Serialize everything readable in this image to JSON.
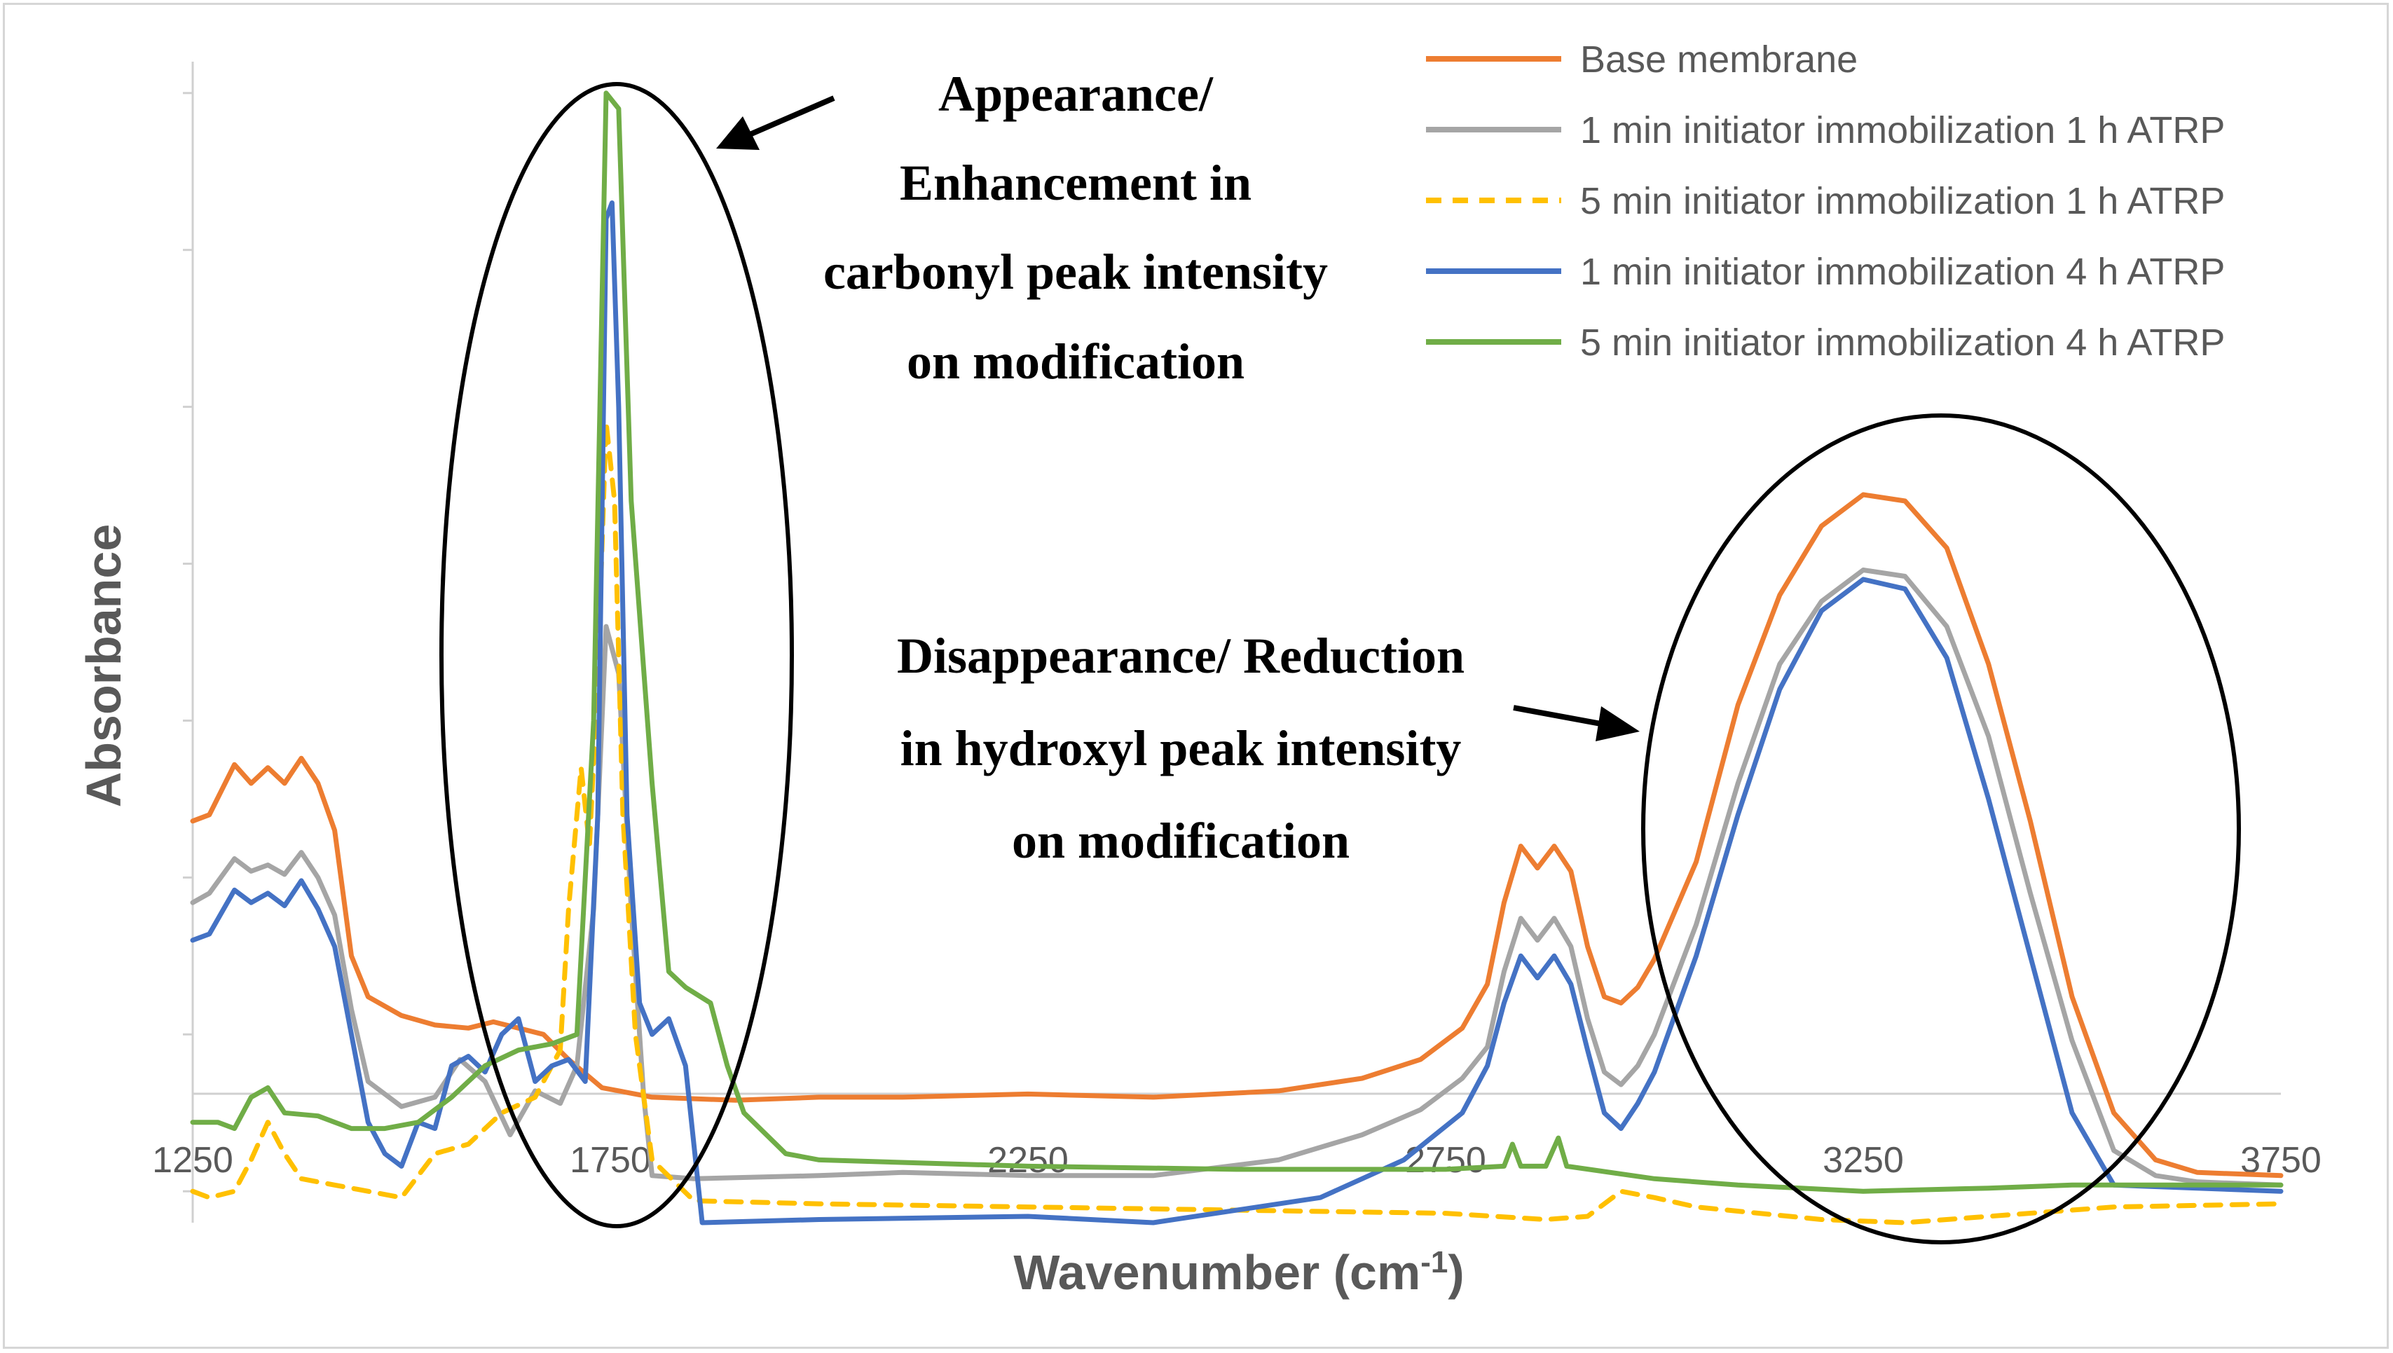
{
  "chart_data": {
    "type": "line",
    "title": "",
    "xlabel": "Wavenumber (cm",
    "xlabel_sup": "-1",
    "xlabel_close": ")",
    "ylabel": "Absorbance",
    "xlim": [
      1250,
      3750
    ],
    "ylim": [
      -0.1,
      3.6
    ],
    "xticks": [
      1250,
      1750,
      2250,
      2750,
      3250,
      3750
    ],
    "series": [
      {
        "name": "Base membrane",
        "color": "#ED7D31",
        "dash": "solid",
        "points": [
          [
            1250,
            1.18
          ],
          [
            1270,
            1.2
          ],
          [
            1300,
            1.36
          ],
          [
            1320,
            1.3
          ],
          [
            1340,
            1.35
          ],
          [
            1360,
            1.3
          ],
          [
            1380,
            1.38
          ],
          [
            1400,
            1.3
          ],
          [
            1420,
            1.15
          ],
          [
            1440,
            0.75
          ],
          [
            1460,
            0.62
          ],
          [
            1500,
            0.56
          ],
          [
            1540,
            0.53
          ],
          [
            1580,
            0.52
          ],
          [
            1610,
            0.54
          ],
          [
            1640,
            0.52
          ],
          [
            1670,
            0.5
          ],
          [
            1700,
            0.42
          ],
          [
            1740,
            0.33
          ],
          [
            1800,
            0.3
          ],
          [
            1900,
            0.29
          ],
          [
            2000,
            0.3
          ],
          [
            2100,
            0.3
          ],
          [
            2250,
            0.31
          ],
          [
            2400,
            0.3
          ],
          [
            2550,
            0.32
          ],
          [
            2650,
            0.36
          ],
          [
            2720,
            0.42
          ],
          [
            2770,
            0.52
          ],
          [
            2800,
            0.66
          ],
          [
            2820,
            0.92
          ],
          [
            2840,
            1.1
          ],
          [
            2860,
            1.03
          ],
          [
            2880,
            1.1
          ],
          [
            2900,
            1.02
          ],
          [
            2920,
            0.78
          ],
          [
            2940,
            0.62
          ],
          [
            2960,
            0.6
          ],
          [
            2980,
            0.65
          ],
          [
            3000,
            0.74
          ],
          [
            3050,
            1.05
          ],
          [
            3100,
            1.55
          ],
          [
            3150,
            1.9
          ],
          [
            3200,
            2.12
          ],
          [
            3250,
            2.22
          ],
          [
            3300,
            2.2
          ],
          [
            3350,
            2.05
          ],
          [
            3400,
            1.68
          ],
          [
            3450,
            1.18
          ],
          [
            3500,
            0.62
          ],
          [
            3550,
            0.25
          ],
          [
            3600,
            0.1
          ],
          [
            3650,
            0.06
          ],
          [
            3750,
            0.05
          ]
        ]
      },
      {
        "name": "1 min initiator immobilization 1 h ATRP",
        "color": "#A5A5A5",
        "dash": "solid",
        "points": [
          [
            1250,
            0.92
          ],
          [
            1270,
            0.95
          ],
          [
            1300,
            1.06
          ],
          [
            1320,
            1.02
          ],
          [
            1340,
            1.04
          ],
          [
            1360,
            1.01
          ],
          [
            1380,
            1.08
          ],
          [
            1400,
            1.0
          ],
          [
            1420,
            0.88
          ],
          [
            1440,
            0.58
          ],
          [
            1460,
            0.35
          ],
          [
            1500,
            0.27
          ],
          [
            1540,
            0.3
          ],
          [
            1570,
            0.42
          ],
          [
            1600,
            0.35
          ],
          [
            1630,
            0.18
          ],
          [
            1660,
            0.32
          ],
          [
            1690,
            0.28
          ],
          [
            1710,
            0.4
          ],
          [
            1730,
            0.9
          ],
          [
            1745,
            1.8
          ],
          [
            1760,
            1.65
          ],
          [
            1775,
            0.9
          ],
          [
            1790,
            0.3
          ],
          [
            1800,
            0.05
          ],
          [
            1850,
            0.04
          ],
          [
            2000,
            0.05
          ],
          [
            2100,
            0.06
          ],
          [
            2250,
            0.05
          ],
          [
            2400,
            0.05
          ],
          [
            2550,
            0.1
          ],
          [
            2650,
            0.18
          ],
          [
            2720,
            0.26
          ],
          [
            2770,
            0.36
          ],
          [
            2800,
            0.46
          ],
          [
            2820,
            0.7
          ],
          [
            2840,
            0.87
          ],
          [
            2860,
            0.8
          ],
          [
            2880,
            0.87
          ],
          [
            2900,
            0.78
          ],
          [
            2920,
            0.55
          ],
          [
            2940,
            0.38
          ],
          [
            2960,
            0.34
          ],
          [
            2980,
            0.4
          ],
          [
            3000,
            0.5
          ],
          [
            3050,
            0.85
          ],
          [
            3100,
            1.3
          ],
          [
            3150,
            1.68
          ],
          [
            3200,
            1.88
          ],
          [
            3250,
            1.98
          ],
          [
            3300,
            1.96
          ],
          [
            3350,
            1.8
          ],
          [
            3400,
            1.45
          ],
          [
            3450,
            0.95
          ],
          [
            3500,
            0.48
          ],
          [
            3550,
            0.13
          ],
          [
            3600,
            0.05
          ],
          [
            3650,
            0.03
          ],
          [
            3750,
            0.02
          ]
        ]
      },
      {
        "name": "5 min initiator immobilization 1 h ATRP",
        "color": "#FFC000",
        "dash": "dashed",
        "points": [
          [
            1250,
            0.0
          ],
          [
            1270,
            -0.02
          ],
          [
            1300,
            0.0
          ],
          [
            1320,
            0.1
          ],
          [
            1340,
            0.22
          ],
          [
            1360,
            0.12
          ],
          [
            1380,
            0.04
          ],
          [
            1420,
            0.02
          ],
          [
            1460,
            0.0
          ],
          [
            1500,
            -0.02
          ],
          [
            1540,
            0.12
          ],
          [
            1580,
            0.15
          ],
          [
            1620,
            0.25
          ],
          [
            1660,
            0.3
          ],
          [
            1690,
            0.45
          ],
          [
            1700,
            0.9
          ],
          [
            1715,
            1.35
          ],
          [
            1725,
            1.1
          ],
          [
            1735,
            1.65
          ],
          [
            1745,
            2.45
          ],
          [
            1755,
            2.2
          ],
          [
            1765,
            1.2
          ],
          [
            1780,
            0.5
          ],
          [
            1800,
            0.1
          ],
          [
            1850,
            -0.03
          ],
          [
            2000,
            -0.04
          ],
          [
            2250,
            -0.05
          ],
          [
            2500,
            -0.06
          ],
          [
            2750,
            -0.07
          ],
          [
            2870,
            -0.09
          ],
          [
            2920,
            -0.08
          ],
          [
            2960,
            0.0
          ],
          [
            3000,
            -0.02
          ],
          [
            3050,
            -0.05
          ],
          [
            3200,
            -0.09
          ],
          [
            3300,
            -0.1
          ],
          [
            3400,
            -0.08
          ],
          [
            3550,
            -0.05
          ],
          [
            3750,
            -0.04
          ]
        ]
      },
      {
        "name": "1 min initiator immobilization 4 h ATRP",
        "color": "#4472C4",
        "dash": "solid",
        "points": [
          [
            1250,
            0.8
          ],
          [
            1270,
            0.82
          ],
          [
            1300,
            0.96
          ],
          [
            1320,
            0.92
          ],
          [
            1340,
            0.95
          ],
          [
            1360,
            0.91
          ],
          [
            1380,
            0.99
          ],
          [
            1400,
            0.9
          ],
          [
            1420,
            0.78
          ],
          [
            1440,
            0.5
          ],
          [
            1460,
            0.22
          ],
          [
            1480,
            0.12
          ],
          [
            1500,
            0.08
          ],
          [
            1520,
            0.22
          ],
          [
            1540,
            0.2
          ],
          [
            1560,
            0.4
          ],
          [
            1580,
            0.43
          ],
          [
            1600,
            0.38
          ],
          [
            1620,
            0.5
          ],
          [
            1640,
            0.55
          ],
          [
            1660,
            0.35
          ],
          [
            1680,
            0.4
          ],
          [
            1700,
            0.42
          ],
          [
            1720,
            0.35
          ],
          [
            1735,
            1.2
          ],
          [
            1745,
            3.1
          ],
          [
            1752,
            3.15
          ],
          [
            1760,
            2.5
          ],
          [
            1770,
            1.2
          ],
          [
            1785,
            0.6
          ],
          [
            1800,
            0.5
          ],
          [
            1820,
            0.55
          ],
          [
            1840,
            0.4
          ],
          [
            1860,
            -0.1
          ],
          [
            2000,
            -0.09
          ],
          [
            2250,
            -0.08
          ],
          [
            2400,
            -0.1
          ],
          [
            2500,
            -0.06
          ],
          [
            2600,
            -0.02
          ],
          [
            2700,
            0.1
          ],
          [
            2770,
            0.25
          ],
          [
            2800,
            0.4
          ],
          [
            2820,
            0.6
          ],
          [
            2840,
            0.75
          ],
          [
            2860,
            0.68
          ],
          [
            2880,
            0.75
          ],
          [
            2900,
            0.66
          ],
          [
            2920,
            0.45
          ],
          [
            2940,
            0.25
          ],
          [
            2960,
            0.2
          ],
          [
            2980,
            0.28
          ],
          [
            3000,
            0.38
          ],
          [
            3050,
            0.75
          ],
          [
            3100,
            1.2
          ],
          [
            3150,
            1.6
          ],
          [
            3200,
            1.85
          ],
          [
            3250,
            1.95
          ],
          [
            3300,
            1.92
          ],
          [
            3350,
            1.7
          ],
          [
            3400,
            1.25
          ],
          [
            3450,
            0.75
          ],
          [
            3500,
            0.25
          ],
          [
            3550,
            0.02
          ],
          [
            3750,
            0.0
          ]
        ]
      },
      {
        "name": "5 min initiator immobilization 4 h ATRP",
        "color": "#70AD47",
        "dash": "solid",
        "points": [
          [
            1250,
            0.22
          ],
          [
            1280,
            0.22
          ],
          [
            1300,
            0.2
          ],
          [
            1320,
            0.3
          ],
          [
            1340,
            0.33
          ],
          [
            1360,
            0.25
          ],
          [
            1400,
            0.24
          ],
          [
            1440,
            0.2
          ],
          [
            1480,
            0.2
          ],
          [
            1520,
            0.22
          ],
          [
            1560,
            0.3
          ],
          [
            1600,
            0.4
          ],
          [
            1640,
            0.45
          ],
          [
            1680,
            0.47
          ],
          [
            1710,
            0.5
          ],
          [
            1730,
            1.5
          ],
          [
            1745,
            3.5
          ],
          [
            1760,
            3.45
          ],
          [
            1775,
            2.2
          ],
          [
            1800,
            1.3
          ],
          [
            1820,
            0.7
          ],
          [
            1840,
            0.65
          ],
          [
            1870,
            0.6
          ],
          [
            1890,
            0.4
          ],
          [
            1910,
            0.25
          ],
          [
            1960,
            0.12
          ],
          [
            2000,
            0.1
          ],
          [
            2250,
            0.08
          ],
          [
            2500,
            0.07
          ],
          [
            2750,
            0.07
          ],
          [
            2820,
            0.08
          ],
          [
            2830,
            0.15
          ],
          [
            2840,
            0.08
          ],
          [
            2870,
            0.08
          ],
          [
            2885,
            0.17
          ],
          [
            2895,
            0.08
          ],
          [
            3000,
            0.04
          ],
          [
            3100,
            0.02
          ],
          [
            3250,
            0.0
          ],
          [
            3400,
            0.01
          ],
          [
            3500,
            0.02
          ],
          [
            3750,
            0.02
          ]
        ]
      }
    ],
    "annotations": [
      {
        "name": "carbonyl",
        "lines": [
          "Appearance/",
          "Enhancement in",
          "carbonyl peak intensity",
          "on modification"
        ]
      },
      {
        "name": "hydroxyl",
        "lines": [
          "Disappearance/ Reduction",
          "in hydroxyl peak intensity",
          "on modification"
        ]
      }
    ]
  }
}
